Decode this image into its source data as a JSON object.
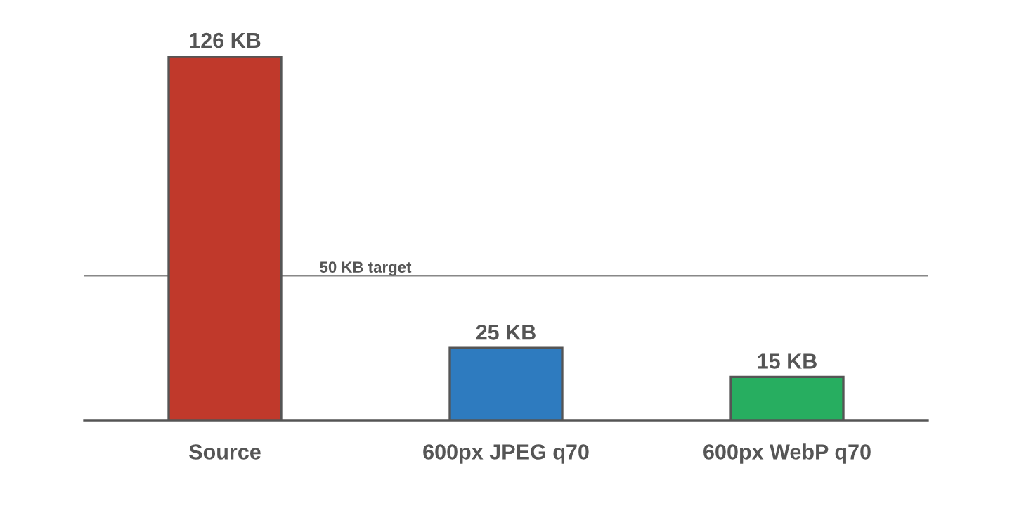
{
  "chart_data": {
    "type": "bar",
    "categories": [
      "Source",
      "600px JPEG q70",
      "600px WebP q70"
    ],
    "values": [
      126,
      25,
      15
    ],
    "colors": [
      "#c0392b",
      "#2e7bbf",
      "#27ae60"
    ],
    "value_labels": [
      "126 KB",
      "25 KB",
      "15 KB"
    ],
    "ref_lines": [
      {
        "axis": "y",
        "value": 50,
        "label": "50 KB target",
        "color": "#888888"
      }
    ],
    "grid": false,
    "legend": false,
    "tick_labels": "x"
  }
}
